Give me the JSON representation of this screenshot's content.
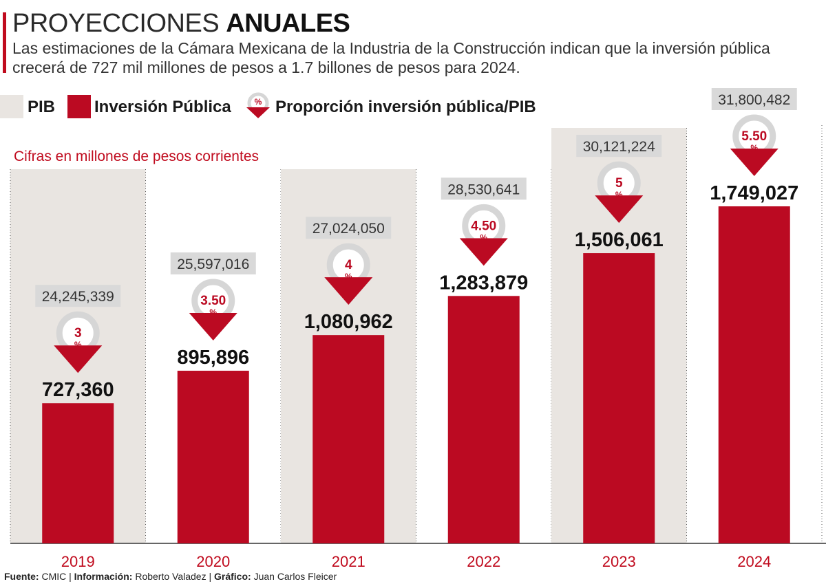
{
  "header": {
    "title_light": "PROYECCIONES",
    "title_bold": "ANUALES",
    "subtitle": "Las estimaciones de la Cámara Mexicana de la Industria de la Construcción indican que la inversión pública crecerá de 727 mil millones de pesos a 1.7 billones de pesos para 2024."
  },
  "legend": {
    "pib": "PIB",
    "inversion": "Inversión Pública",
    "proporcion": "Proporción inversión pública/PIB",
    "percent_symbol": "%"
  },
  "units_note": "Cifras en millones de pesos corrientes",
  "colors": {
    "pib": "#e9e5e1",
    "inversion": "#bb0a22",
    "ring": "#d6d6d6",
    "label_box": "#d9d9d9"
  },
  "chart_data": {
    "type": "bar",
    "categories": [
      "2019",
      "2020",
      "2021",
      "2022",
      "2023",
      "2024"
    ],
    "series": [
      {
        "name": "PIB",
        "values": [
          24245339,
          25597016,
          27024050,
          28530641,
          30121224,
          31800482
        ],
        "labels": [
          "24,245,339",
          "25,597,016",
          "27,024,050",
          "28,530,641",
          "30,121,224",
          "31,800,482"
        ]
      },
      {
        "name": "Inversión Pública",
        "values": [
          727360,
          895896,
          1080962,
          1283879,
          1506061,
          1749027
        ],
        "labels": [
          "727,360",
          "895,896",
          "1,080,962",
          "1,283,879",
          "1,506,061",
          "1,749,027"
        ]
      },
      {
        "name": "Proporción inversión pública/PIB",
        "values": [
          3,
          3.5,
          4,
          4.5,
          5,
          5.5
        ],
        "labels": [
          "3",
          "3.50",
          "4",
          "4.50",
          "5",
          "5.50"
        ]
      }
    ]
  },
  "footer": {
    "fuente_label": "Fuente:",
    "fuente": "CMIC",
    "informacion_label": "Información:",
    "informacion": "Roberto Valadez",
    "grafico_label": "Gráfico:",
    "grafico": "Juan Carlos Fleicer"
  }
}
